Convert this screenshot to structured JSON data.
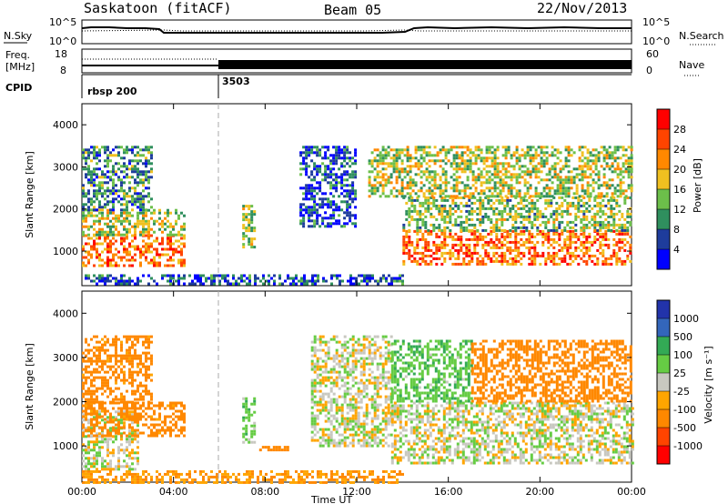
{
  "header": {
    "title": "Saskatoon (fitACF)",
    "beam": "Beam 05",
    "date": "22/Nov/2013"
  },
  "noise_panel": {
    "left_label": "N.Sky",
    "right_label": "N.Search",
    "left_ticks": [
      "10^5",
      "10^0"
    ],
    "right_ticks": [
      "10^5",
      "10^0"
    ]
  },
  "freq_panel": {
    "left_label_1": "Freq.",
    "left_label_2": "[MHz]",
    "right_label": "Nave",
    "left_ticks": [
      "18",
      "8"
    ],
    "right_ticks": [
      "60",
      "0"
    ]
  },
  "cpid_panel": {
    "label": "CPID",
    "modes": [
      {
        "name": "rbsp 200",
        "start_hour": 0
      },
      {
        "name": "3503",
        "start_hour": 6
      }
    ]
  },
  "power_colorbar": {
    "label": "Power [dB]",
    "ticks": [
      "28",
      "24",
      "20",
      "16",
      "12",
      "8",
      "4"
    ],
    "colors": [
      "#ff0000",
      "#ff4400",
      "#ff8800",
      "#f0c020",
      "#6cbf4a",
      "#2f8f5e",
      "#1e3c9c",
      "#0000ff"
    ]
  },
  "velocity_colorbar": {
    "label": "Velocity [m s⁻¹]",
    "ticks": [
      "1000",
      "500",
      "100",
      "25",
      "-25",
      "-100",
      "-500",
      "-1000"
    ],
    "colors": [
      "#2233aa",
      "#3366bb",
      "#33aa55",
      "#66cc44",
      "#c8c8c0",
      "#ffa500",
      "#ff8800",
      "#ff4400",
      "#ff0000"
    ]
  },
  "chart_data": [
    {
      "type": "heatmap",
      "ylabel": "Slant Range [km]",
      "xlabel": "Time UT",
      "x_ticks": [
        "00:00",
        "04:00",
        "08:00",
        "12:00",
        "16:00",
        "20:00",
        "00:00"
      ],
      "xlim": [
        0,
        24
      ],
      "y_ticks": [
        1000,
        2000,
        3000,
        4000
      ],
      "ylim": [
        180,
        4500
      ],
      "quantity": "Power [dB]",
      "regions": [
        {
          "t0": 0.0,
          "t1": 4.5,
          "r0": 650,
          "r1": 1400,
          "value": 24
        },
        {
          "t0": 0.0,
          "t1": 4.5,
          "r0": 1400,
          "r1": 2000,
          "value": 16
        },
        {
          "t0": 0.0,
          "t1": 3.0,
          "r0": 2000,
          "r1": 3500,
          "value": 10
        },
        {
          "t0": 7.0,
          "t1": 7.5,
          "r0": 1100,
          "r1": 2100,
          "value": 14
        },
        {
          "t0": 9.5,
          "t1": 12.0,
          "r0": 1600,
          "r1": 3500,
          "value": 6
        },
        {
          "t0": 14.0,
          "t1": 24.0,
          "r0": 700,
          "r1": 1500,
          "value": 24
        },
        {
          "t0": 14.0,
          "t1": 24.0,
          "r0": 1500,
          "r1": 2300,
          "value": 14
        },
        {
          "t0": 12.5,
          "t1": 24.0,
          "r0": 2300,
          "r1": 3500,
          "value": 16
        },
        {
          "t0": 0.0,
          "t1": 14.0,
          "r0": 200,
          "r1": 450,
          "value": 6
        }
      ]
    },
    {
      "type": "heatmap",
      "ylabel": "Slant Range [km]",
      "xlabel": "Time UT",
      "x_ticks": [
        "00:00",
        "04:00",
        "08:00",
        "12:00",
        "16:00",
        "20:00",
        "00:00"
      ],
      "xlim": [
        0,
        24
      ],
      "y_ticks": [
        1000,
        2000,
        3000,
        4000
      ],
      "ylim": [
        180,
        4500
      ],
      "quantity": "Velocity [m s⁻¹]",
      "regions": [
        {
          "t0": 0.0,
          "t1": 2.5,
          "r0": 500,
          "r1": 1800,
          "value": 0
        },
        {
          "t0": 0.0,
          "t1": 4.5,
          "r0": 1200,
          "r1": 2000,
          "value": -150
        },
        {
          "t0": 0.0,
          "t1": 3.0,
          "r0": 2000,
          "r1": 3500,
          "value": -150
        },
        {
          "t0": 7.0,
          "t1": 7.5,
          "r0": 1100,
          "r1": 2100,
          "value": 60
        },
        {
          "t0": 7.5,
          "t1": 9.0,
          "r0": 900,
          "r1": 1000,
          "value": -300
        },
        {
          "t0": 10.0,
          "t1": 13.5,
          "r0": 1000,
          "r1": 3500,
          "value": 0
        },
        {
          "t0": 13.5,
          "t1": 24.0,
          "r0": 600,
          "r1": 2000,
          "value": 0
        },
        {
          "t0": 13.5,
          "t1": 17.0,
          "r0": 2000,
          "r1": 3400,
          "value": 80
        },
        {
          "t0": 17.0,
          "t1": 24.0,
          "r0": 2000,
          "r1": 3400,
          "value": -200
        },
        {
          "t0": 0.0,
          "t1": 14.0,
          "r0": 200,
          "r1": 450,
          "value": -100
        }
      ]
    }
  ]
}
